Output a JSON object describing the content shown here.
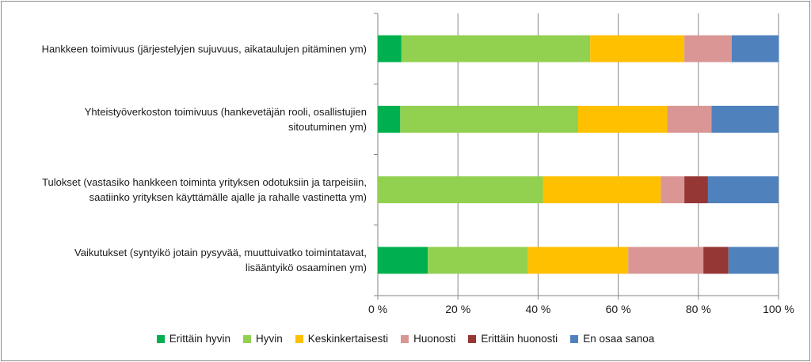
{
  "chart_data": {
    "type": "bar",
    "orientation": "horizontal",
    "stacked": "percent",
    "categories": [
      "Hankkeen toimivuus (järjestelyjen sujuvuus, aikataulujen pitäminen ym)",
      "Yhteistyöverkoston toimivuus (hankevetäjän rooli, osallistujien sitoutuminen ym)",
      "Tulokset (vastasiko hankkeen toiminta yrityksen odotuksiin ja tarpeisiin, saatiinko yrityksen käyttämälle ajalle ja rahalle vastinetta ym)",
      "Vaikutukset (syntyikö jotain pysyvää, muuttuivatko toimintatavat, lisääntyikö osaaminen ym)"
    ],
    "category_lines": [
      [
        "Hankkeen toimivuus (järjestelyjen sujuvuus, aikataulujen pitäminen ym)"
      ],
      [
        "Yhteistyöverkoston toimivuus (hankevetäjän rooli, osallistujien",
        "sitoutuminen ym)"
      ],
      [
        "Tulokset (vastasiko hankkeen toiminta yrityksen odotuksiin ja tarpeisiin,",
        "saatiinko yrityksen käyttämälle ajalle ja rahalle vastinetta ym)"
      ],
      [
        "Vaikutukset (syntyikö jotain pysyvää, muuttuivatko toimintatavat,",
        "lisääntyikö osaaminen ym)"
      ]
    ],
    "series": [
      {
        "name": "Erittäin hyvin",
        "color": "#00b050",
        "values": [
          5.9,
          5.6,
          0,
          12.5
        ]
      },
      {
        "name": "Hyvin",
        "color": "#92d050",
        "values": [
          47.1,
          44.4,
          41.2,
          25.0
        ]
      },
      {
        "name": "Keskinkertaisesti",
        "color": "#ffc000",
        "values": [
          23.5,
          22.2,
          29.4,
          25.0
        ]
      },
      {
        "name": "Huonosti",
        "color": "#d99694",
        "values": [
          11.8,
          11.1,
          5.9,
          18.75
        ]
      },
      {
        "name": "Erittäin huonosti",
        "color": "#953735",
        "values": [
          0,
          0,
          5.9,
          6.25
        ]
      },
      {
        "name": "En osaa sanoa",
        "color": "#4f81bd",
        "values": [
          11.8,
          16.7,
          17.6,
          12.5
        ]
      }
    ],
    "xlim": [
      0,
      100
    ],
    "xticks": [
      "0 %",
      "20 %",
      "40 %",
      "60 %",
      "80 %",
      "100 %"
    ],
    "grid": true,
    "legend_position": "bottom",
    "title": "",
    "xlabel": "",
    "ylabel": ""
  }
}
